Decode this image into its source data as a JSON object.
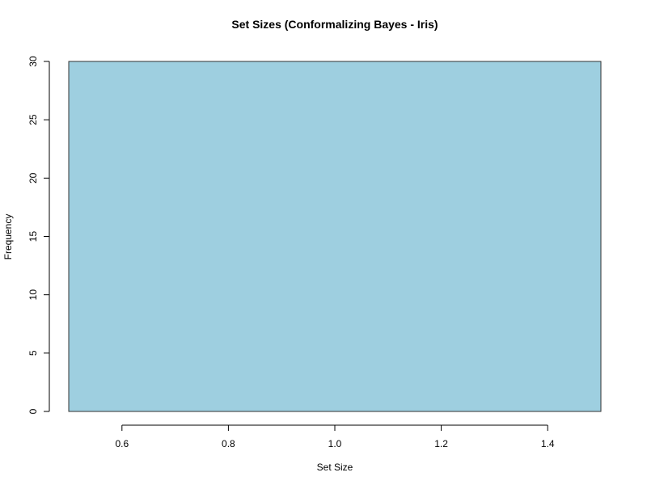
{
  "chart_data": {
    "type": "bar",
    "title": "Set Sizes (Conformalizing Bayes - Iris)",
    "xlabel": "Set Size",
    "ylabel": "Frequency",
    "bins": [
      {
        "start": 0.5,
        "end": 1.5,
        "value": 30
      }
    ],
    "xlim": [
      0.5,
      1.5
    ],
    "ylim": [
      0,
      30
    ],
    "x_ticks": [
      0.6,
      0.8,
      1.0,
      1.2,
      1.4
    ],
    "x_tick_labels": [
      "0.6",
      "0.8",
      "1.0",
      "1.2",
      "1.4"
    ],
    "y_ticks": [
      0,
      5,
      10,
      15,
      20,
      25,
      30
    ],
    "y_tick_labels": [
      "0",
      "5",
      "10",
      "15",
      "20",
      "25",
      "30"
    ],
    "grid": false,
    "legend": "none",
    "bar_color": "#9ecfe0",
    "bar_border_color": "#333333"
  }
}
